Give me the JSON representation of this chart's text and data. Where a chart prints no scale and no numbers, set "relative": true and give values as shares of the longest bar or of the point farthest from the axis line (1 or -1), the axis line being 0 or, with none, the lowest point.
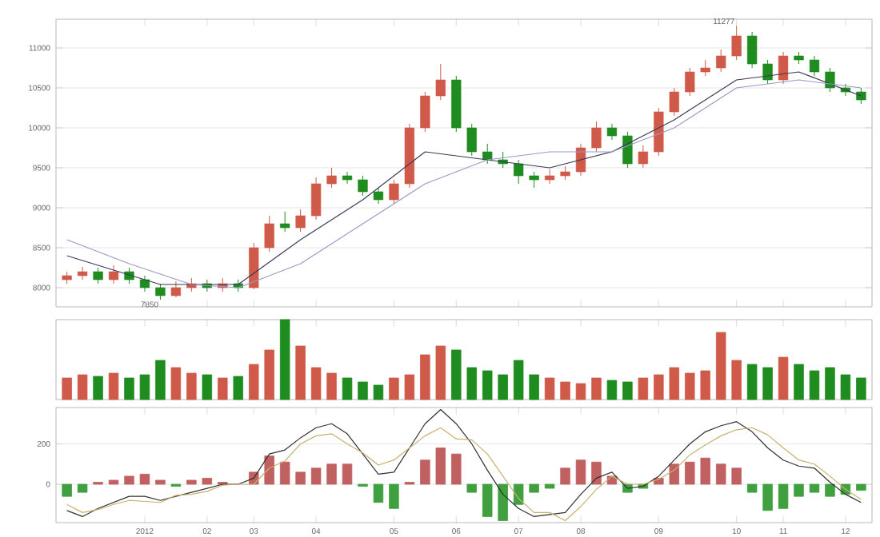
{
  "chart_data": [
    {
      "type": "candlestick",
      "categories": [
        null,
        null,
        null,
        null,
        null,
        "2012",
        null,
        null,
        null,
        "02",
        null,
        null,
        "03",
        null,
        null,
        null,
        "04",
        null,
        null,
        null,
        null,
        "05",
        null,
        null,
        null,
        "06",
        null,
        null,
        null,
        "07",
        null,
        null,
        null,
        "08",
        null,
        null,
        null,
        null,
        "09",
        null,
        null,
        null,
        null,
        "10",
        null,
        null,
        "11",
        null,
        null,
        null,
        "12",
        null
      ],
      "ohlc": [
        [
          8100,
          8200,
          8050,
          8150
        ],
        [
          8150,
          8260,
          8100,
          8200
        ],
        [
          8200,
          8250,
          8050,
          8100
        ],
        [
          8100,
          8280,
          8050,
          8200
        ],
        [
          8200,
          8250,
          8050,
          8100
        ],
        [
          8100,
          8150,
          7950,
          8000
        ],
        [
          8000,
          8050,
          7850,
          7900
        ],
        [
          7900,
          8080,
          7880,
          8000
        ],
        [
          8000,
          8120,
          7950,
          8050
        ],
        [
          8050,
          8100,
          7950,
          8000
        ],
        [
          8000,
          8120,
          7950,
          8050
        ],
        [
          8050,
          8100,
          7950,
          8000
        ],
        [
          8000,
          8560,
          7980,
          8500
        ],
        [
          8500,
          8900,
          8450,
          8800
        ],
        [
          8800,
          8950,
          8700,
          8750
        ],
        [
          8750,
          8980,
          8700,
          8900
        ],
        [
          8900,
          9380,
          8850,
          9300
        ],
        [
          9300,
          9500,
          9250,
          9400
        ],
        [
          9400,
          9450,
          9300,
          9350
        ],
        [
          9350,
          9400,
          9150,
          9200
        ],
        [
          9200,
          9250,
          9050,
          9100
        ],
        [
          9100,
          9350,
          9050,
          9300
        ],
        [
          9300,
          10050,
          9250,
          10000
        ],
        [
          10000,
          10450,
          9950,
          10400
        ],
        [
          10400,
          10800,
          10350,
          10600
        ],
        [
          10600,
          10650,
          9950,
          10000
        ],
        [
          10000,
          10050,
          9650,
          9700
        ],
        [
          9700,
          9800,
          9550,
          9600
        ],
        [
          9600,
          9700,
          9500,
          9550
        ],
        [
          9550,
          9600,
          9300,
          9400
        ],
        [
          9400,
          9450,
          9250,
          9350
        ],
        [
          9350,
          9480,
          9300,
          9400
        ],
        [
          9400,
          9520,
          9350,
          9450
        ],
        [
          9450,
          9800,
          9400,
          9750
        ],
        [
          9750,
          10080,
          9700,
          10000
        ],
        [
          10000,
          10050,
          9850,
          9900
        ],
        [
          9900,
          9950,
          9500,
          9550
        ],
        [
          9550,
          9780,
          9500,
          9700
        ],
        [
          9700,
          10250,
          9650,
          10200
        ],
        [
          10200,
          10500,
          10150,
          10450
        ],
        [
          10450,
          10750,
          10400,
          10700
        ],
        [
          10700,
          10850,
          10650,
          10750
        ],
        [
          10750,
          10980,
          10700,
          10900
        ],
        [
          10900,
          11277,
          10850,
          11150
        ],
        [
          11150,
          11200,
          10750,
          10800
        ],
        [
          10800,
          10850,
          10550,
          10600
        ],
        [
          10600,
          10950,
          10550,
          10900
        ],
        [
          10900,
          10950,
          10800,
          10850
        ],
        [
          10850,
          10900,
          10650,
          10700
        ],
        [
          10700,
          10750,
          10450,
          10500
        ],
        [
          10500,
          10550,
          10400,
          10450
        ],
        [
          10450,
          10500,
          10300,
          10350
        ]
      ],
      "colors": [
        "#d05a4a",
        "#d05a4a",
        "#1e8c1e",
        "#d05a4a",
        "#1e8c1e",
        "#1e8c1e",
        "#1e8c1e",
        "#d05a4a",
        "#d05a4a",
        "#1e8c1e",
        "#d05a4a",
        "#1e8c1e",
        "#d05a4a",
        "#d05a4a",
        "#1e8c1e",
        "#d05a4a",
        "#d05a4a",
        "#d05a4a",
        "#1e8c1e",
        "#1e8c1e",
        "#1e8c1e",
        "#d05a4a",
        "#d05a4a",
        "#d05a4a",
        "#d05a4a",
        "#1e8c1e",
        "#1e8c1e",
        "#1e8c1e",
        "#1e8c1e",
        "#1e8c1e",
        "#1e8c1e",
        "#d05a4a",
        "#d05a4a",
        "#d05a4a",
        "#d05a4a",
        "#1e8c1e",
        "#1e8c1e",
        "#d05a4a",
        "#d05a4a",
        "#d05a4a",
        "#d05a4a",
        "#d05a4a",
        "#d05a4a",
        "#d05a4a",
        "#1e8c1e",
        "#1e8c1e",
        "#d05a4a",
        "#1e8c1e",
        "#1e8c1e",
        "#1e8c1e",
        "#1e8c1e",
        "#1e8c1e"
      ],
      "series": [
        {
          "type": "line",
          "color": "#3a3a5a",
          "values": [
            8400,
            null,
            null,
            null,
            null,
            null,
            8040,
            null,
            null,
            null,
            null,
            8040,
            null,
            null,
            null,
            8600,
            null,
            null,
            null,
            9100,
            null,
            null,
            null,
            9700,
            null,
            null,
            null,
            9600,
            null,
            null,
            null,
            9500,
            null,
            null,
            null,
            9700,
            null,
            null,
            null,
            10100,
            null,
            null,
            null,
            10600,
            null,
            null,
            null,
            10700,
            null,
            null,
            null,
            10400
          ]
        },
        {
          "type": "line",
          "color": "#9a9ac8",
          "values": [
            8600,
            null,
            null,
            null,
            8300,
            null,
            null,
            null,
            8040,
            null,
            null,
            8000,
            null,
            null,
            null,
            8300,
            null,
            null,
            null,
            8800,
            null,
            null,
            null,
            9300,
            null,
            null,
            null,
            9600,
            null,
            null,
            null,
            9700,
            null,
            null,
            null,
            9700,
            null,
            null,
            null,
            10000,
            null,
            null,
            null,
            10500,
            null,
            null,
            null,
            10600,
            null,
            null,
            null,
            10500
          ]
        }
      ],
      "annotations": [
        "7850",
        "11277"
      ],
      "ylim": [
        7760,
        11360
      ],
      "yticks": [
        8000,
        8500,
        9000,
        9500,
        10000,
        10500,
        11000
      ],
      "grid": "y",
      "tick_labels": "y"
    },
    {
      "type": "bar",
      "relative": true,
      "tick_labels": false,
      "categories": [
        null,
        null,
        null,
        null,
        null,
        "2012",
        null,
        null,
        null,
        "02",
        null,
        null,
        "03",
        null,
        null,
        null,
        "04",
        null,
        null,
        null,
        null,
        "05",
        null,
        null,
        null,
        "06",
        null,
        null,
        null,
        "07",
        null,
        null,
        null,
        "08",
        null,
        null,
        null,
        null,
        "09",
        null,
        null,
        null,
        null,
        "10",
        null,
        null,
        "11",
        null,
        null,
        null,
        "12",
        null
      ],
      "values": [
        0.27,
        0.31,
        0.29,
        0.33,
        0.27,
        0.31,
        0.49,
        0.4,
        0.33,
        0.31,
        0.27,
        0.29,
        0.44,
        0.62,
        1,
        0.67,
        0.4,
        0.33,
        0.27,
        0.22,
        0.18,
        0.27,
        0.31,
        0.56,
        0.67,
        0.62,
        0.4,
        0.36,
        0.31,
        0.49,
        0.31,
        0.27,
        0.22,
        0.2,
        0.27,
        0.24,
        0.22,
        0.27,
        0.31,
        0.4,
        0.33,
        0.36,
        0.84,
        0.49,
        0.44,
        0.4,
        0.53,
        0.44,
        0.36,
        0.4,
        0.31,
        0.27
      ],
      "colors": [
        "#d05a4a",
        "#d05a4a",
        "#1e8c1e",
        "#d05a4a",
        "#1e8c1e",
        "#1e8c1e",
        "#1e8c1e",
        "#d05a4a",
        "#d05a4a",
        "#1e8c1e",
        "#d05a4a",
        "#1e8c1e",
        "#d05a4a",
        "#d05a4a",
        "#1e8c1e",
        "#d05a4a",
        "#d05a4a",
        "#d05a4a",
        "#1e8c1e",
        "#1e8c1e",
        "#1e8c1e",
        "#d05a4a",
        "#d05a4a",
        "#d05a4a",
        "#d05a4a",
        "#1e8c1e",
        "#1e8c1e",
        "#1e8c1e",
        "#1e8c1e",
        "#1e8c1e",
        "#1e8c1e",
        "#d05a4a",
        "#d05a4a",
        "#d05a4a",
        "#d05a4a",
        "#1e8c1e",
        "#1e8c1e",
        "#d05a4a",
        "#d05a4a",
        "#d05a4a",
        "#d05a4a",
        "#d05a4a",
        "#d05a4a",
        "#d05a4a",
        "#1e8c1e",
        "#1e8c1e",
        "#d05a4a",
        "#1e8c1e",
        "#1e8c1e",
        "#1e8c1e",
        "#1e8c1e",
        "#1e8c1e"
      ]
    },
    {
      "type": "bar",
      "categories": [
        null,
        null,
        null,
        null,
        null,
        "2012",
        null,
        null,
        null,
        "02",
        null,
        null,
        "03",
        null,
        null,
        null,
        "04",
        null,
        null,
        null,
        null,
        "05",
        null,
        null,
        null,
        "06",
        null,
        null,
        null,
        "07",
        null,
        null,
        null,
        "08",
        null,
        null,
        null,
        null,
        "09",
        null,
        null,
        null,
        null,
        "10",
        null,
        null,
        "11",
        null,
        null,
        null,
        "12",
        null
      ],
      "series": [
        {
          "type": "bar",
          "values": [
            -60,
            -40,
            10,
            20,
            40,
            50,
            20,
            -10,
            20,
            30,
            10,
            null,
            60,
            140,
            110,
            60,
            80,
            100,
            100,
            -10,
            -90,
            -120,
            10,
            120,
            180,
            150,
            -40,
            -160,
            -180,
            -100,
            -40,
            -20,
            80,
            120,
            110,
            40,
            -40,
            -20,
            30,
            100,
            110,
            130,
            100,
            80,
            -40,
            -130,
            -120,
            -60,
            -40,
            -60,
            -50,
            -30
          ],
          "colors": [
            "#40a040",
            "#40a040",
            "#c06060",
            "#c06060",
            "#c06060",
            "#c06060",
            "#c06060",
            "#40a040",
            "#c06060",
            "#c06060",
            "#c06060",
            "#c06060",
            "#c06060",
            "#c06060",
            "#c06060",
            "#c06060",
            "#c06060",
            "#c06060",
            "#c06060",
            "#40a040",
            "#40a040",
            "#40a040",
            "#c06060",
            "#c06060",
            "#c06060",
            "#c06060",
            "#40a040",
            "#40a040",
            "#40a040",
            "#40a040",
            "#40a040",
            "#40a040",
            "#c06060",
            "#c06060",
            "#c06060",
            "#c06060",
            "#40a040",
            "#40a040",
            "#c06060",
            "#c06060",
            "#c06060",
            "#c06060",
            "#c06060",
            "#c06060",
            "#40a040",
            "#40a040",
            "#40a040",
            "#40a040",
            "#40a040",
            "#40a040",
            "#40a040",
            "#40a040"
          ]
        },
        {
          "type": "line",
          "color": "#303030",
          "values": [
            -130,
            -160,
            -120,
            -90,
            -60,
            -60,
            -80,
            -60,
            -40,
            -20,
            0,
            0,
            30,
            150,
            170,
            230,
            280,
            300,
            250,
            150,
            50,
            60,
            180,
            300,
            370,
            300,
            200,
            70,
            -50,
            -120,
            -160,
            -150,
            -140,
            -50,
            30,
            60,
            -20,
            -10,
            40,
            120,
            200,
            260,
            290,
            310,
            260,
            180,
            120,
            90,
            80,
            10,
            -50,
            -90
          ]
        },
        {
          "type": "line",
          "color": "#c8b070",
          "values": [
            -100,
            -140,
            -125,
            -100,
            -80,
            -85,
            -90,
            -55,
            -50,
            -35,
            -5,
            0,
            0,
            80,
            115,
            200,
            240,
            250,
            200,
            155,
            95,
            120,
            180,
            240,
            280,
            225,
            220,
            150,
            40,
            -70,
            -140,
            -140,
            -180,
            -110,
            -25,
            40,
            0,
            0,
            25,
            70,
            145,
            195,
            240,
            270,
            280,
            245,
            180,
            120,
            100,
            40,
            -25,
            -75
          ]
        }
      ],
      "ylim": [
        -190,
        380
      ],
      "yticks": [
        0,
        200
      ],
      "grid": "y"
    }
  ]
}
